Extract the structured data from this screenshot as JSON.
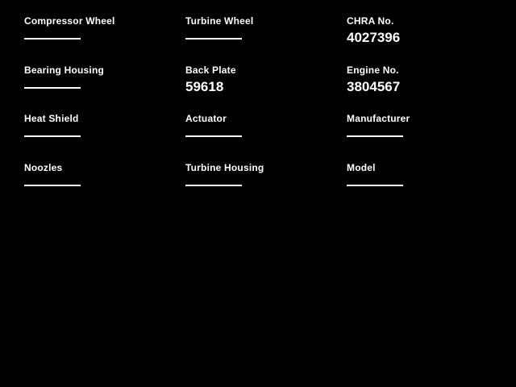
{
  "page": {
    "background_color": "#000000",
    "text_color": "#ffffff",
    "empty_value_indicator": "horizontal-line"
  },
  "fields": [
    {
      "label": "Compressor Wheel",
      "value": null
    },
    {
      "label": "Turbine Wheel",
      "value": null
    },
    {
      "label": "CHRA No.",
      "value": "4027396"
    },
    {
      "label": "Bearing Housing",
      "value": null
    },
    {
      "label": "Back Plate",
      "value": "59618"
    },
    {
      "label": "Engine No.",
      "value": "3804567"
    },
    {
      "label": "Heat Shield",
      "value": null
    },
    {
      "label": "Actuator",
      "value": null
    },
    {
      "label": "Manufacturer",
      "value": null
    },
    {
      "label": "Noozles",
      "value": null
    },
    {
      "label": "Turbine Housing",
      "value": null
    },
    {
      "label": "Model",
      "value": null
    }
  ]
}
